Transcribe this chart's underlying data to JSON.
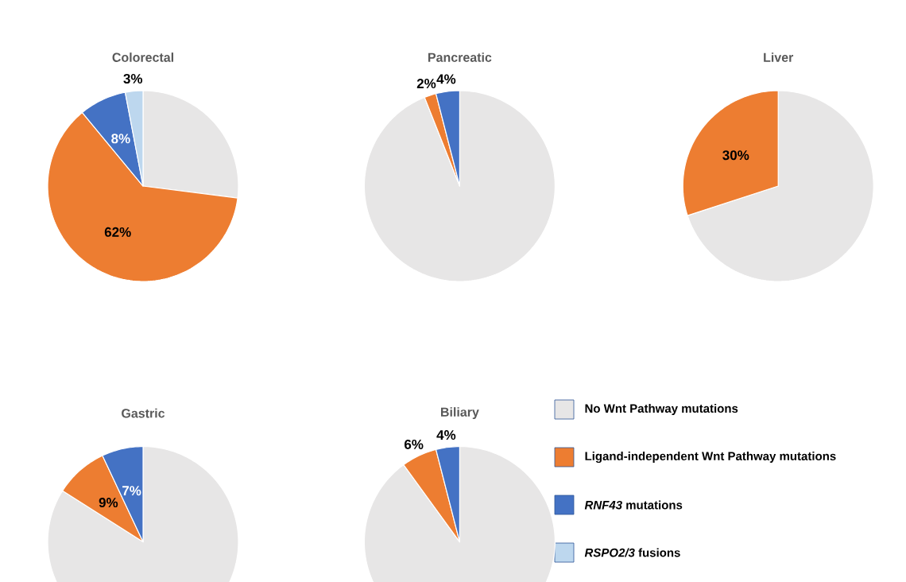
{
  "chart_data": [
    {
      "type": "pie",
      "title": "Colorectal",
      "categories": [
        "No Wnt Pathway mutations",
        "Ligand-independent Wnt Pathway mutations",
        "*RNF43* mutations",
        "*RSPO2/3* fusions"
      ],
      "values": [
        27,
        62,
        8,
        3
      ],
      "colors": [
        "#e7e6e6",
        "#ed7d31",
        "#4472c4",
        "#bdd7ee"
      ],
      "value_labels": [
        null,
        "62%",
        "8%",
        "3%"
      ],
      "legend": "bottom right"
    },
    {
      "type": "pie",
      "title": "Pancreatic",
      "categories": [
        null,
        null,
        null
      ],
      "values": [
        94,
        2,
        4
      ],
      "colors": [
        "#e7e6e6",
        "#ed7d31",
        "#4472c4"
      ],
      "value_labels": [
        null,
        "2%",
        "4%"
      ]
    },
    {
      "type": "pie",
      "title": "Liver",
      "categories": [
        null,
        null
      ],
      "values": [
        70,
        30
      ],
      "colors": [
        "#e7e6e6",
        "#ed7d31"
      ],
      "value_labels": [
        null,
        "30%"
      ]
    },
    {
      "type": "pie",
      "title": "Gastric",
      "categories": [
        null,
        null,
        null
      ],
      "values": [
        84,
        9,
        7
      ],
      "colors": [
        "#e7e6e6",
        "#ed7d31",
        "#4472c4"
      ],
      "value_labels": [
        null,
        "9%",
        "7%"
      ]
    },
    {
      "type": "pie",
      "title": "Biliary",
      "categories": [
        null,
        null,
        null
      ],
      "values": [
        90,
        6,
        4
      ],
      "colors": [
        "#e7e6e6",
        "#ed7d31",
        "#4472c4"
      ],
      "value_labels": [
        null,
        "6%",
        "4%"
      ]
    }
  ]
}
